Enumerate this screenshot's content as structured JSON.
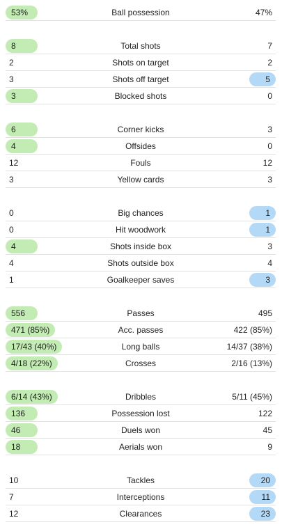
{
  "colors": {
    "home_highlight": "#c3ebb4",
    "away_highlight": "#b3d9f7",
    "divider": "#e2e2e2"
  },
  "groups": [
    {
      "rows": [
        {
          "label": "Ball possession",
          "home": "53%",
          "away": "47%",
          "winner": "home"
        }
      ]
    },
    {
      "rows": [
        {
          "label": "Total shots",
          "home": "8",
          "away": "7",
          "winner": "home"
        },
        {
          "label": "Shots on target",
          "home": "2",
          "away": "2",
          "winner": "none"
        },
        {
          "label": "Shots off target",
          "home": "3",
          "away": "5",
          "winner": "away"
        },
        {
          "label": "Blocked shots",
          "home": "3",
          "away": "0",
          "winner": "home"
        }
      ]
    },
    {
      "rows": [
        {
          "label": "Corner kicks",
          "home": "6",
          "away": "3",
          "winner": "home"
        },
        {
          "label": "Offsides",
          "home": "4",
          "away": "0",
          "winner": "home"
        },
        {
          "label": "Fouls",
          "home": "12",
          "away": "12",
          "winner": "none"
        },
        {
          "label": "Yellow cards",
          "home": "3",
          "away": "3",
          "winner": "none"
        }
      ]
    },
    {
      "rows": [
        {
          "label": "Big chances",
          "home": "0",
          "away": "1",
          "winner": "away"
        },
        {
          "label": "Hit woodwork",
          "home": "0",
          "away": "1",
          "winner": "away"
        },
        {
          "label": "Shots inside box",
          "home": "4",
          "away": "3",
          "winner": "home"
        },
        {
          "label": "Shots outside box",
          "home": "4",
          "away": "4",
          "winner": "none"
        },
        {
          "label": "Goalkeeper saves",
          "home": "1",
          "away": "3",
          "winner": "away"
        }
      ]
    },
    {
      "rows": [
        {
          "label": "Passes",
          "home": "556",
          "away": "495",
          "winner": "home"
        },
        {
          "label": "Acc. passes",
          "home": "471 (85%)",
          "away": "422 (85%)",
          "winner": "home"
        },
        {
          "label": "Long balls",
          "home": "17/43 (40%)",
          "away": "14/37 (38%)",
          "winner": "home"
        },
        {
          "label": "Crosses",
          "home": "4/18 (22%)",
          "away": "2/16 (13%)",
          "winner": "home"
        }
      ]
    },
    {
      "rows": [
        {
          "label": "Dribbles",
          "home": "6/14 (43%)",
          "away": "5/11 (45%)",
          "winner": "home"
        },
        {
          "label": "Possession lost",
          "home": "136",
          "away": "122",
          "winner": "home"
        },
        {
          "label": "Duels won",
          "home": "46",
          "away": "45",
          "winner": "home"
        },
        {
          "label": "Aerials won",
          "home": "18",
          "away": "9",
          "winner": "home"
        }
      ]
    },
    {
      "rows": [
        {
          "label": "Tackles",
          "home": "10",
          "away": "20",
          "winner": "away"
        },
        {
          "label": "Interceptions",
          "home": "7",
          "away": "11",
          "winner": "away"
        },
        {
          "label": "Clearances",
          "home": "12",
          "away": "23",
          "winner": "away"
        }
      ]
    }
  ]
}
